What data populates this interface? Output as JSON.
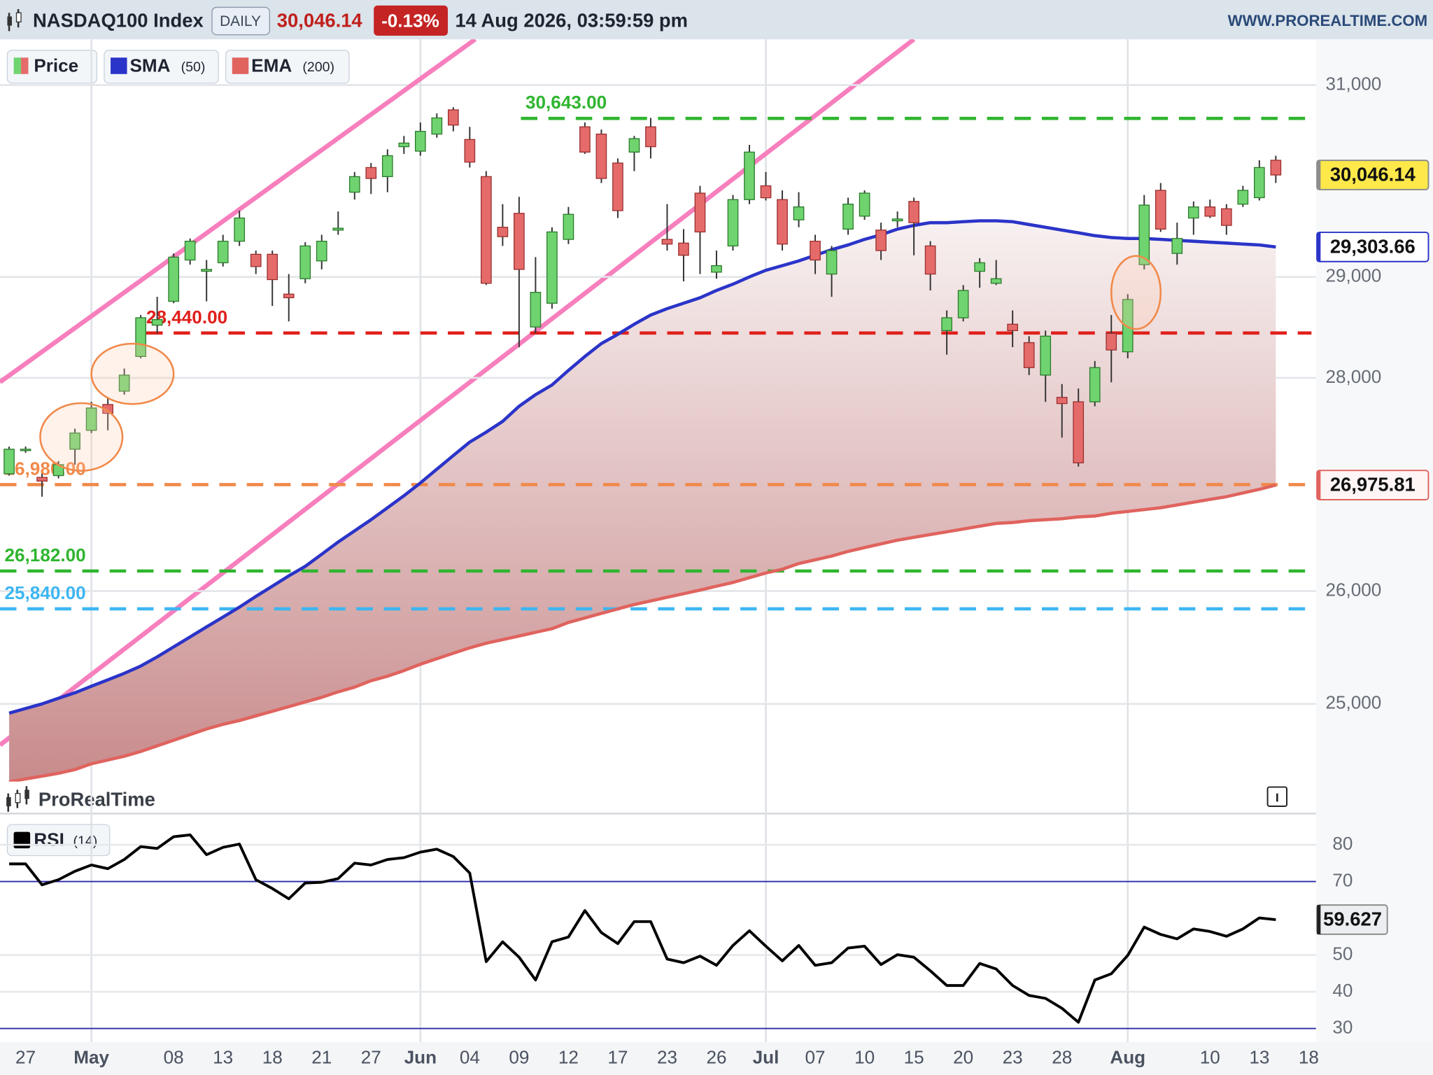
{
  "header": {
    "symbol": "NASDAQ100 Index",
    "period": "DAILY",
    "change": "-0.13%",
    "datetime": "14 Aug 2026, 03:59:59 pm",
    "site": "WWW.PROREALTIME.COM",
    "watermark": "ProRealTime"
  },
  "chart_data": [
    {
      "type": "candlestick",
      "price_label": "Price",
      "categories": [
        null,
        "27",
        null,
        null,
        null,
        "May",
        null,
        null,
        null,
        null,
        "08",
        null,
        null,
        "13",
        null,
        null,
        "18",
        null,
        null,
        "21",
        null,
        null,
        "27",
        null,
        null,
        "Jun",
        null,
        null,
        "04",
        null,
        null,
        "09",
        null,
        null,
        "12",
        null,
        null,
        "17",
        null,
        null,
        "23",
        null,
        null,
        "26",
        null,
        null,
        "Jul",
        null,
        null,
        "07",
        null,
        null,
        "10",
        null,
        null,
        "15",
        null,
        null,
        "20",
        null,
        null,
        "23",
        null,
        null,
        "28",
        null,
        null,
        null,
        "Aug",
        null,
        null,
        null,
        null,
        "10",
        null,
        null,
        "13",
        null,
        null,
        "18"
      ],
      "open": [
        27082,
        27306,
        27048,
        27065,
        27314,
        27494,
        27742,
        27871,
        28209,
        28518,
        28755,
        29171,
        29057,
        29143,
        29362,
        29229,
        29229,
        28827,
        28982,
        29162,
        29476,
        29867,
        30124,
        30029,
        30343,
        30296,
        30476,
        30734,
        30419,
        30029,
        29505,
        29648,
        28500,
        28736,
        29381,
        30553,
        30476,
        30171,
        30286,
        30553,
        29381,
        29343,
        29857,
        29048,
        29314,
        29790,
        29933,
        29790,
        29581,
        29362,
        29029,
        29486,
        29619,
        29476,
        29571,
        29771,
        29314,
        28464,
        28591,
        29057,
        28936,
        28527,
        28345,
        28027,
        27811,
        27768,
        27768,
        28436,
        28255,
        29124,
        29886,
        29238,
        29600,
        29714,
        29695,
        29743,
        29810,
        30200,
        null,
        null
      ],
      "high": [
        27339,
        27339,
        27082,
        27202,
        27510,
        27768,
        27811,
        28091,
        28618,
        28800,
        29238,
        29390,
        29171,
        29428,
        29676,
        29267,
        29267,
        29029,
        29352,
        29428,
        29667,
        30077,
        30172,
        30315,
        30457,
        30600,
        30696,
        30762,
        30553,
        30086,
        29743,
        29819,
        29200,
        29505,
        29714,
        30600,
        30524,
        30219,
        30457,
        30648,
        29743,
        29486,
        29933,
        29267,
        29838,
        30362,
        30077,
        29886,
        29867,
        29428,
        29314,
        29810,
        29886,
        29552,
        29667,
        29810,
        29362,
        28664,
        28918,
        29190,
        29171,
        28664,
        28409,
        28464,
        27940,
        27897,
        28164,
        28618,
        28827,
        29838,
        29962,
        29552,
        29771,
        29790,
        29743,
        29933,
        30200,
        30248,
        null,
        null
      ],
      "low": [
        27065,
        27280,
        26867,
        27039,
        27168,
        27468,
        27494,
        27837,
        28191,
        28436,
        28736,
        29124,
        28755,
        29105,
        29314,
        29029,
        28709,
        28555,
        28936,
        29076,
        29428,
        29790,
        29848,
        29867,
        30267,
        30248,
        30438,
        30505,
        30124,
        28918,
        29314,
        28300,
        28436,
        28682,
        29333,
        30267,
        29962,
        29600,
        30086,
        30219,
        29267,
        28955,
        29029,
        28982,
        29267,
        29743,
        29781,
        29267,
        29505,
        29029,
        28800,
        29428,
        29581,
        29171,
        29505,
        29219,
        28864,
        28227,
        28555,
        28891,
        28918,
        28300,
        28027,
        27768,
        27425,
        27150,
        27725,
        27957,
        28191,
        29076,
        29457,
        29124,
        29428,
        29600,
        29428,
        29714,
        29781,
        29962,
        null,
        null
      ],
      "close": [
        27314,
        27314,
        27013,
        27168,
        27468,
        27708,
        27657,
        28027,
        28591,
        28573,
        29200,
        29362,
        29076,
        29362,
        29600,
        29105,
        28973,
        28791,
        29314,
        29362,
        29495,
        30029,
        30010,
        30248,
        30381,
        30505,
        30648,
        30572,
        30181,
        28936,
        29409,
        29076,
        28845,
        29457,
        29638,
        30286,
        30010,
        29676,
        30428,
        30343,
        29333,
        29219,
        29457,
        29114,
        29790,
        30286,
        29809,
        29333,
        29714,
        29171,
        29267,
        29743,
        29857,
        29267,
        29590,
        29552,
        29029,
        28591,
        28864,
        29143,
        28982,
        28464,
        28100,
        28409,
        27751,
        27185,
        28100,
        28273,
        28773,
        29733,
        29486,
        29390,
        29714,
        29619,
        29524,
        29886,
        30124,
        30046.14,
        null,
        null
      ],
      "up_color": "#6fd46f",
      "down_color": "#e56b6b",
      "last_price": {
        "value": 30046.14,
        "label": "30,046.14"
      },
      "series": [
        {
          "name": "SMA",
          "param": "(50)",
          "color": "#2b34c8",
          "tag": {
            "value": 29303.66,
            "label": "29,303.66"
          },
          "values": [
            24920,
            24960,
            25000,
            25049,
            25097,
            25154,
            25210,
            25267,
            25331,
            25412,
            25500,
            25589,
            25678,
            25766,
            25855,
            25952,
            26044,
            26138,
            26224,
            26335,
            26447,
            26550,
            26653,
            26764,
            26876,
            26996,
            27125,
            27254,
            27382,
            27477,
            27580,
            27725,
            27837,
            27931,
            28073,
            28209,
            28336,
            28427,
            28527,
            28618,
            28682,
            28736,
            28791,
            28864,
            28927,
            29000,
            29067,
            29114,
            29162,
            29219,
            29276,
            29324,
            29381,
            29428,
            29486,
            29524,
            29552,
            29552,
            29562,
            29571,
            29571,
            29562,
            29533,
            29505,
            29476,
            29448,
            29419,
            29400,
            29390,
            29390,
            29381,
            29371,
            29362,
            29352,
            29343,
            29333,
            29324,
            29303.66,
            null,
            null
          ]
        },
        {
          "name": "EMA",
          "param": "(200)",
          "color": "#e0635e",
          "tag": {
            "value": 26975.81,
            "label": "26,975.81"
          },
          "values": [
            24332,
            24356,
            24380,
            24404,
            24436,
            24485,
            24517,
            24549,
            24590,
            24638,
            24686,
            24735,
            24783,
            24823,
            24856,
            24896,
            24936,
            24976,
            25017,
            25057,
            25105,
            25146,
            25202,
            25242,
            25291,
            25347,
            25396,
            25444,
            25492,
            25533,
            25565,
            25597,
            25630,
            25662,
            25718,
            25758,
            25799,
            25839,
            25879,
            25911,
            25944,
            25976,
            26009,
            26044,
            26078,
            26121,
            26164,
            26198,
            26250,
            26284,
            26318,
            26361,
            26396,
            26430,
            26464,
            26490,
            26516,
            26541,
            26567,
            26593,
            26619,
            26627,
            26644,
            26653,
            26662,
            26679,
            26687,
            26713,
            26730,
            26747,
            26764,
            26790,
            26816,
            26842,
            26867,
            26902,
            26936,
            26975.81,
            null,
            null
          ]
        }
      ],
      "levels": [
        {
          "value": 30643,
          "label": "30,643.00",
          "color": "#2fb52f"
        },
        {
          "value": 28440,
          "label": "28,440.00",
          "color": "#e0201c"
        },
        {
          "value": 26980,
          "label": "26,980.00",
          "color": "#f0894a"
        },
        {
          "value": 26182,
          "label": "26,182.00",
          "color": "#2fb52f"
        },
        {
          "value": 25840,
          "label": "25,840.00",
          "color": "#3db6f2"
        }
      ],
      "ylim": [
        24334,
        31497
      ],
      "log_scale": true,
      "grid": true,
      "yticks": [
        {
          "value": 25000,
          "label": "25,000"
        },
        {
          "value": 26000,
          "label": "26,000"
        },
        {
          "value": 28000,
          "label": "28,000"
        },
        {
          "value": 29000,
          "label": "29,000"
        },
        {
          "value": 31000,
          "label": "31,000"
        }
      ]
    },
    {
      "type": "line",
      "name": "RSI",
      "param": "(14)",
      "color": "#000000",
      "values": [
        74.8,
        74.8,
        69.1,
        70.5,
        72.8,
        74.5,
        73.5,
        76.0,
        79.5,
        79.0,
        82.2,
        82.7,
        77.3,
        79.3,
        80.2,
        70.5,
        68.1,
        65.3,
        69.6,
        69.8,
        70.8,
        75.0,
        74.5,
        76.0,
        76.5,
        78.0,
        78.8,
        76.8,
        72.3,
        48.2,
        53.6,
        49.4,
        43.2,
        53.6,
        54.9,
        62.1,
        56.1,
        53.1,
        59.1,
        59.1,
        48.9,
        47.9,
        49.7,
        47.2,
        52.6,
        56.6,
        52.4,
        48.4,
        52.6,
        47.2,
        47.9,
        51.9,
        52.4,
        47.4,
        50.1,
        49.4,
        45.7,
        41.7,
        41.7,
        47.7,
        46.2,
        41.7,
        39.0,
        38.2,
        35.5,
        31.7,
        43.2,
        44.9,
        49.9,
        57.6,
        55.6,
        54.4,
        57.1,
        56.4,
        55.1,
        57.1,
        60.1,
        59.627,
        null,
        null
      ],
      "tag": 59.627,
      "ref_lines": [
        70,
        30
      ],
      "ref_color": "#2a2aa8",
      "ylim": [
        26.3,
        88
      ],
      "yticks": [
        30,
        40,
        50,
        70,
        80
      ]
    }
  ]
}
